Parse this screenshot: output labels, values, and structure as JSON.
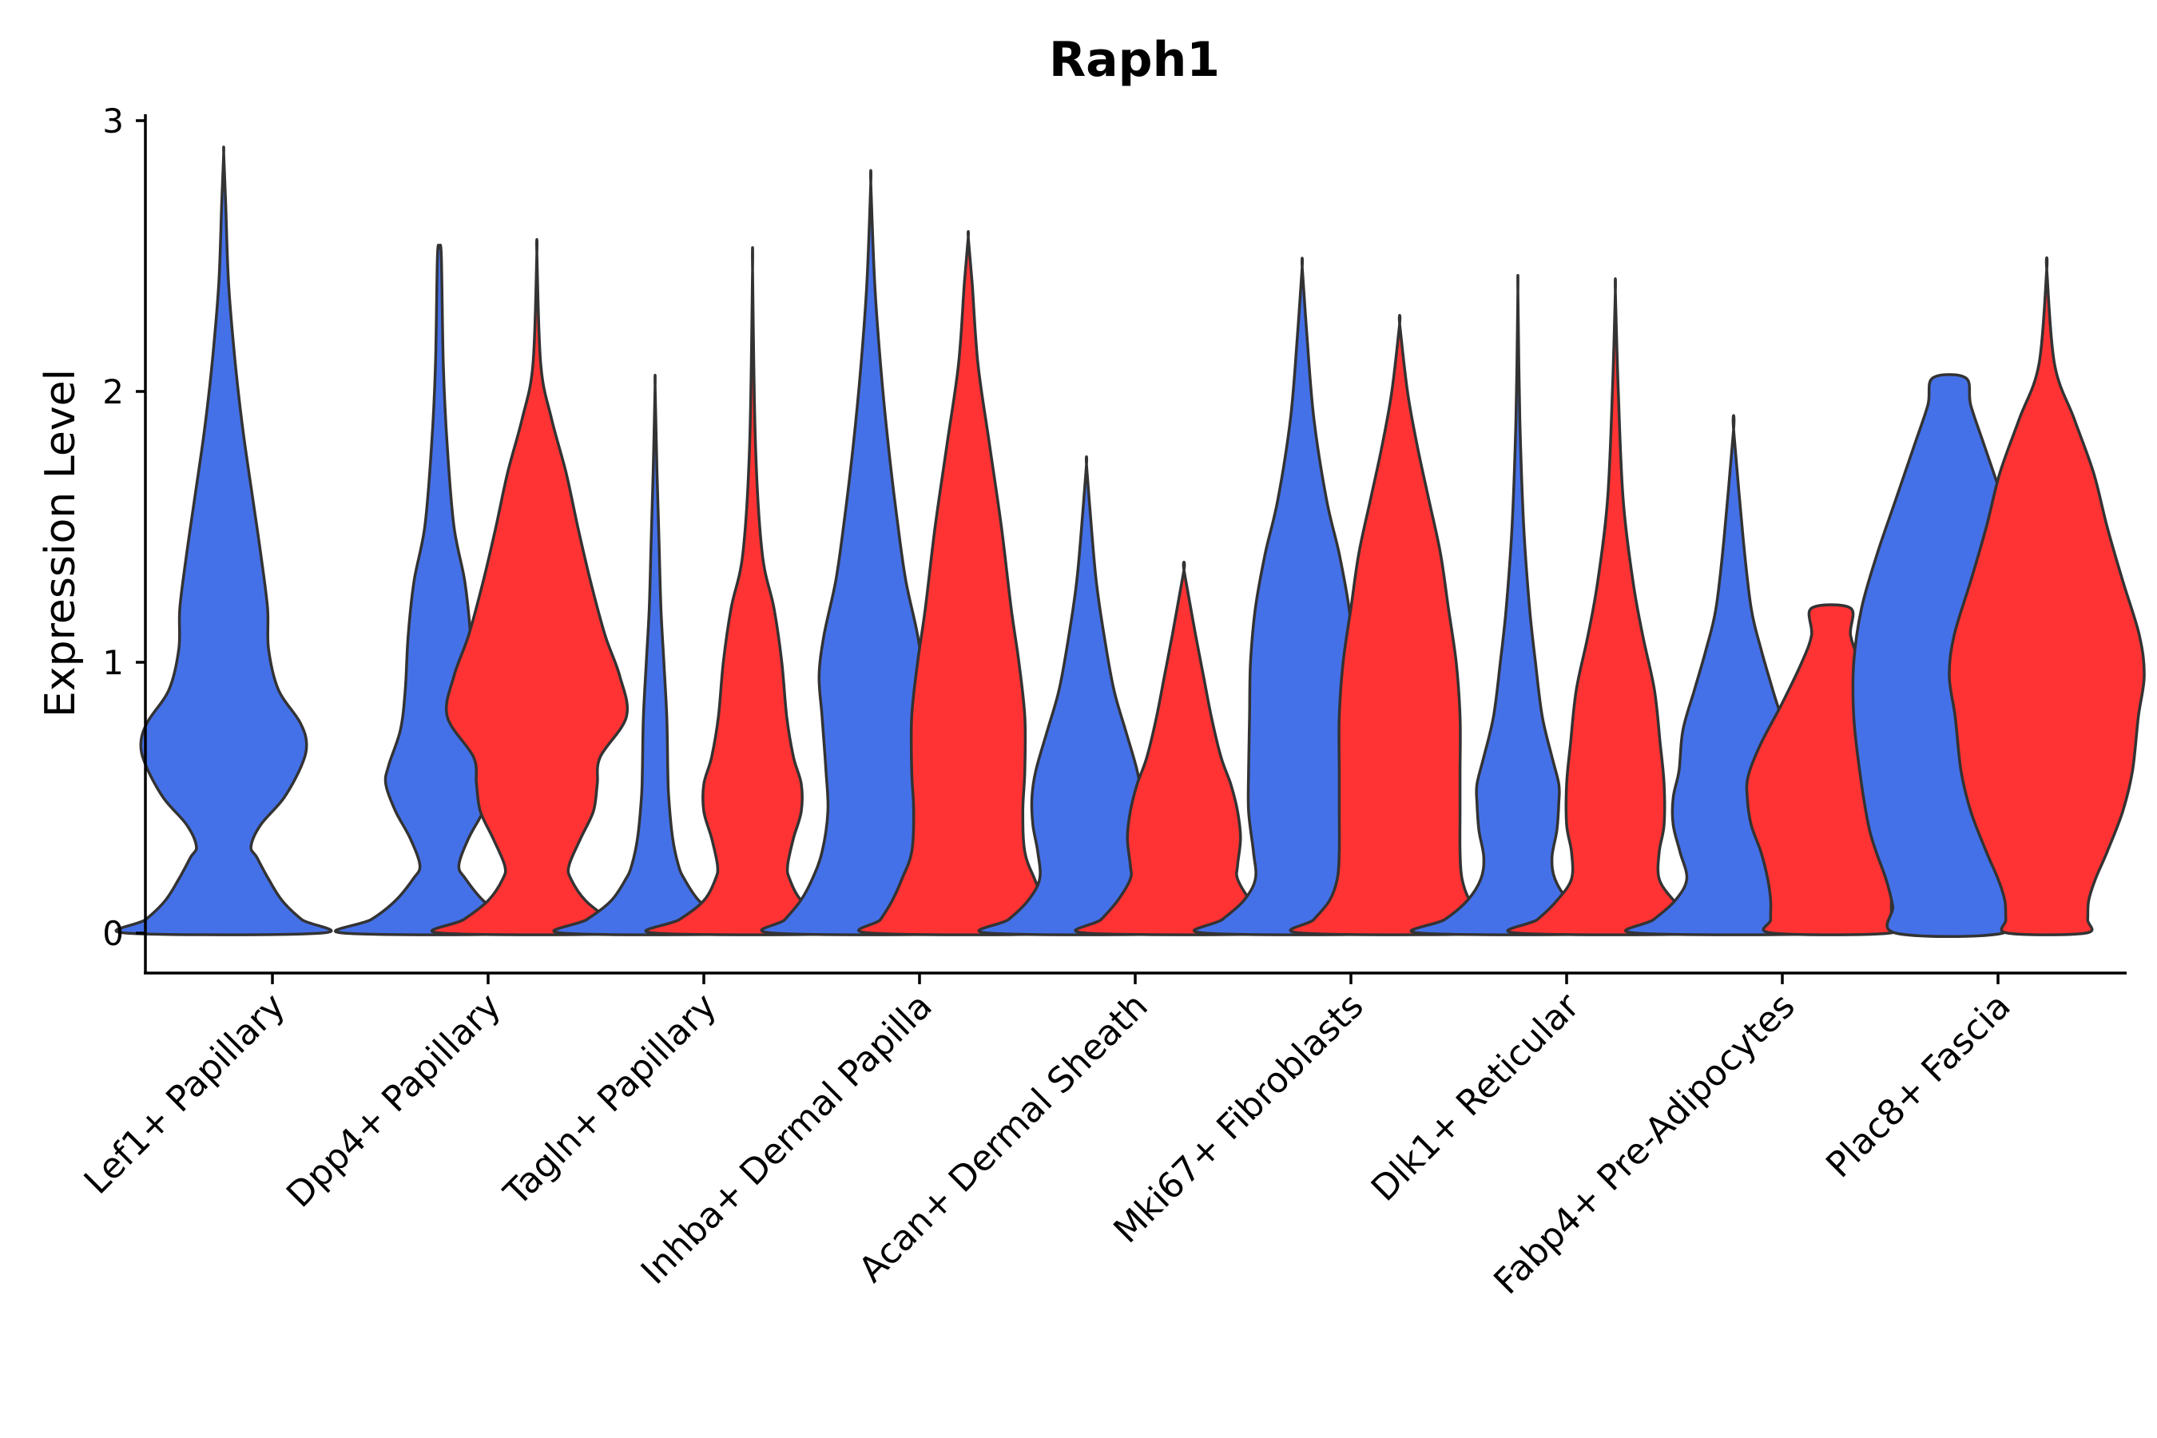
{
  "chart_data": {
    "type": "violin",
    "title": "Raph1",
    "xlabel": "",
    "ylabel": "Expression Level",
    "ylim": [
      -0.15,
      3
    ],
    "yticks": [
      0,
      1,
      2,
      3
    ],
    "grid": false,
    "legend": "none",
    "split_colors": [
      "#4571E8",
      "#FF3333"
    ],
    "categories": [
      "Lef1+ Papillary",
      "Dpp4+ Papillary",
      "Tagln+ Papillary",
      "Inhba+ Dermal Papilla",
      "Acan+ Dermal Sheath",
      "Mki67+ Fibroblasts",
      "Dlk1+ Reticular",
      "Fabp4+ Pre-Adipocytes",
      "Plac8+ Fascia"
    ],
    "violins": [
      {
        "category": "Lef1+ Papillary",
        "group": 1,
        "color": "#4571E8",
        "max": 2.88,
        "profile": [
          [
            0,
            1.0
          ],
          [
            0.05,
            0.8
          ],
          [
            0.12,
            0.6
          ],
          [
            0.2,
            0.46
          ],
          [
            0.28,
            0.34
          ],
          [
            0.32,
            0.28
          ],
          [
            0.4,
            0.38
          ],
          [
            0.5,
            0.62
          ],
          [
            0.62,
            0.8
          ],
          [
            0.7,
            0.85
          ],
          [
            0.78,
            0.78
          ],
          [
            0.9,
            0.56
          ],
          [
            1.05,
            0.46
          ],
          [
            1.2,
            0.45
          ],
          [
            1.4,
            0.38
          ],
          [
            1.6,
            0.3
          ],
          [
            1.85,
            0.2
          ],
          [
            2.1,
            0.12
          ],
          [
            2.4,
            0.05
          ],
          [
            2.7,
            0.02
          ],
          [
            2.88,
            0
          ]
        ]
      },
      {
        "category": "Dpp4+ Papillary",
        "group": 1,
        "color": "#4571E8",
        "max": 2.53,
        "profile": [
          [
            0,
            0.98
          ],
          [
            0.05,
            0.7
          ],
          [
            0.12,
            0.45
          ],
          [
            0.2,
            0.27
          ],
          [
            0.25,
            0.2
          ],
          [
            0.35,
            0.3
          ],
          [
            0.45,
            0.45
          ],
          [
            0.55,
            0.55
          ],
          [
            0.62,
            0.52
          ],
          [
            0.75,
            0.4
          ],
          [
            0.9,
            0.35
          ],
          [
            1.1,
            0.32
          ],
          [
            1.3,
            0.26
          ],
          [
            1.5,
            0.15
          ],
          [
            1.8,
            0.08
          ],
          [
            2.1,
            0.04
          ],
          [
            2.5,
            0.02
          ],
          [
            2.53,
            0
          ]
        ]
      },
      {
        "category": "Dpp4+ Papillary",
        "group": 2,
        "color": "#FF3333",
        "max": 2.51,
        "profile": [
          [
            0,
            0.98
          ],
          [
            0.05,
            0.75
          ],
          [
            0.12,
            0.5
          ],
          [
            0.2,
            0.35
          ],
          [
            0.25,
            0.33
          ],
          [
            0.35,
            0.45
          ],
          [
            0.45,
            0.58
          ],
          [
            0.55,
            0.62
          ],
          [
            0.65,
            0.65
          ],
          [
            0.8,
            0.92
          ],
          [
            0.95,
            0.85
          ],
          [
            1.1,
            0.7
          ],
          [
            1.3,
            0.55
          ],
          [
            1.5,
            0.42
          ],
          [
            1.7,
            0.3
          ],
          [
            1.9,
            0.15
          ],
          [
            2.1,
            0.04
          ],
          [
            2.51,
            0
          ]
        ]
      },
      {
        "category": "Tagln+ Papillary",
        "group": 1,
        "color": "#4571E8",
        "max": 2.02,
        "profile": [
          [
            0,
            0.95
          ],
          [
            0.05,
            0.7
          ],
          [
            0.12,
            0.45
          ],
          [
            0.2,
            0.3
          ],
          [
            0.25,
            0.24
          ],
          [
            0.35,
            0.18
          ],
          [
            0.5,
            0.14
          ],
          [
            0.6,
            0.13
          ],
          [
            0.8,
            0.12
          ],
          [
            1.0,
            0.09
          ],
          [
            1.2,
            0.06
          ],
          [
            1.45,
            0.04
          ],
          [
            1.7,
            0.02
          ],
          [
            2.02,
            0
          ]
        ]
      },
      {
        "category": "Tagln+ Papillary",
        "group": 2,
        "color": "#FF3333",
        "max": 2.45,
        "profile": [
          [
            0,
            1.0
          ],
          [
            0.05,
            0.75
          ],
          [
            0.12,
            0.5
          ],
          [
            0.2,
            0.38
          ],
          [
            0.25,
            0.36
          ],
          [
            0.35,
            0.42
          ],
          [
            0.45,
            0.5
          ],
          [
            0.55,
            0.5
          ],
          [
            0.65,
            0.42
          ],
          [
            0.8,
            0.35
          ],
          [
            1.0,
            0.3
          ],
          [
            1.2,
            0.22
          ],
          [
            1.4,
            0.1
          ],
          [
            1.8,
            0.03
          ],
          [
            2.45,
            0
          ]
        ]
      },
      {
        "category": "Inhba+ Dermal Papilla",
        "group": 1,
        "color": "#4571E8",
        "max": 2.77,
        "profile": [
          [
            0,
            1.0
          ],
          [
            0.05,
            0.88
          ],
          [
            0.12,
            0.72
          ],
          [
            0.2,
            0.6
          ],
          [
            0.3,
            0.5
          ],
          [
            0.45,
            0.44
          ],
          [
            0.6,
            0.46
          ],
          [
            0.8,
            0.5
          ],
          [
            0.95,
            0.53
          ],
          [
            1.1,
            0.48
          ],
          [
            1.3,
            0.36
          ],
          [
            1.5,
            0.28
          ],
          [
            1.8,
            0.18
          ],
          [
            2.1,
            0.1
          ],
          [
            2.4,
            0.04
          ],
          [
            2.77,
            0
          ]
        ]
      },
      {
        "category": "Inhba+ Dermal Papilla",
        "group": 2,
        "color": "#FF3333",
        "max": 2.57,
        "profile": [
          [
            0,
            1.0
          ],
          [
            0.05,
            0.9
          ],
          [
            0.12,
            0.78
          ],
          [
            0.2,
            0.68
          ],
          [
            0.3,
            0.58
          ],
          [
            0.45,
            0.56
          ],
          [
            0.6,
            0.58
          ],
          [
            0.8,
            0.58
          ],
          [
            1.0,
            0.52
          ],
          [
            1.2,
            0.44
          ],
          [
            1.5,
            0.34
          ],
          [
            1.8,
            0.22
          ],
          [
            2.1,
            0.1
          ],
          [
            2.4,
            0.04
          ],
          [
            2.57,
            0
          ]
        ]
      },
      {
        "category": "Acan+ Dermal Sheath",
        "group": 1,
        "color": "#4571E8",
        "max": 1.73,
        "profile": [
          [
            0,
            1.0
          ],
          [
            0.05,
            0.8
          ],
          [
            0.12,
            0.6
          ],
          [
            0.2,
            0.48
          ],
          [
            0.3,
            0.5
          ],
          [
            0.4,
            0.55
          ],
          [
            0.5,
            0.56
          ],
          [
            0.6,
            0.52
          ],
          [
            0.75,
            0.4
          ],
          [
            0.9,
            0.28
          ],
          [
            1.1,
            0.18
          ],
          [
            1.3,
            0.1
          ],
          [
            1.5,
            0.05
          ],
          [
            1.73,
            0
          ]
        ]
      },
      {
        "category": "Acan+ Dermal Sheath",
        "group": 2,
        "color": "#FF3333",
        "max": 1.34,
        "profile": [
          [
            0,
            1.0
          ],
          [
            0.05,
            0.85
          ],
          [
            0.12,
            0.68
          ],
          [
            0.2,
            0.55
          ],
          [
            0.25,
            0.55
          ],
          [
            0.35,
            0.58
          ],
          [
            0.45,
            0.55
          ],
          [
            0.55,
            0.48
          ],
          [
            0.65,
            0.38
          ],
          [
            0.8,
            0.28
          ],
          [
            0.95,
            0.2
          ],
          [
            1.1,
            0.12
          ],
          [
            1.34,
            0
          ]
        ]
      },
      {
        "category": "Mki67+ Fibroblasts",
        "group": 1,
        "color": "#4571E8",
        "max": 2.46,
        "profile": [
          [
            0,
            1.0
          ],
          [
            0.05,
            0.82
          ],
          [
            0.12,
            0.6
          ],
          [
            0.2,
            0.48
          ],
          [
            0.3,
            0.5
          ],
          [
            0.45,
            0.55
          ],
          [
            0.6,
            0.55
          ],
          [
            0.8,
            0.54
          ],
          [
            1.0,
            0.53
          ],
          [
            1.2,
            0.48
          ],
          [
            1.4,
            0.38
          ],
          [
            1.6,
            0.25
          ],
          [
            1.9,
            0.12
          ],
          [
            2.2,
            0.05
          ],
          [
            2.46,
            0
          ]
        ]
      },
      {
        "category": "Mki67+ Fibroblasts",
        "group": 2,
        "color": "#FF3333",
        "max": 2.25,
        "profile": [
          [
            0,
            1.0
          ],
          [
            0.05,
            0.88
          ],
          [
            0.12,
            0.72
          ],
          [
            0.2,
            0.64
          ],
          [
            0.3,
            0.62
          ],
          [
            0.45,
            0.62
          ],
          [
            0.6,
            0.62
          ],
          [
            0.8,
            0.62
          ],
          [
            1.0,
            0.58
          ],
          [
            1.2,
            0.5
          ],
          [
            1.4,
            0.42
          ],
          [
            1.6,
            0.3
          ],
          [
            1.8,
            0.18
          ],
          [
            2.0,
            0.08
          ],
          [
            2.25,
            0
          ]
        ]
      },
      {
        "category": "Dlk1+ Reticular",
        "group": 1,
        "color": "#4571E8",
        "max": 2.37,
        "profile": [
          [
            0,
            1.0
          ],
          [
            0.05,
            0.75
          ],
          [
            0.12,
            0.52
          ],
          [
            0.2,
            0.38
          ],
          [
            0.28,
            0.35
          ],
          [
            0.38,
            0.4
          ],
          [
            0.48,
            0.42
          ],
          [
            0.55,
            0.42
          ],
          [
            0.65,
            0.35
          ],
          [
            0.8,
            0.25
          ],
          [
            1.0,
            0.18
          ],
          [
            1.2,
            0.12
          ],
          [
            1.5,
            0.06
          ],
          [
            1.9,
            0.02
          ],
          [
            2.37,
            0
          ]
        ]
      },
      {
        "category": "Dlk1+ Reticular",
        "group": 2,
        "color": "#FF3333",
        "max": 2.37,
        "profile": [
          [
            0,
            1.0
          ],
          [
            0.05,
            0.8
          ],
          [
            0.12,
            0.6
          ],
          [
            0.2,
            0.45
          ],
          [
            0.3,
            0.45
          ],
          [
            0.4,
            0.5
          ],
          [
            0.55,
            0.5
          ],
          [
            0.7,
            0.46
          ],
          [
            0.9,
            0.4
          ],
          [
            1.1,
            0.28
          ],
          [
            1.3,
            0.18
          ],
          [
            1.6,
            0.08
          ],
          [
            2.0,
            0.03
          ],
          [
            2.37,
            0
          ]
        ]
      },
      {
        "category": "Fabp4+ Pre-Adipocytes",
        "group": 1,
        "color": "#4571E8",
        "max": 1.86,
        "profile": [
          [
            0,
            1.0
          ],
          [
            0.05,
            0.82
          ],
          [
            0.12,
            0.6
          ],
          [
            0.2,
            0.48
          ],
          [
            0.3,
            0.55
          ],
          [
            0.4,
            0.62
          ],
          [
            0.5,
            0.62
          ],
          [
            0.6,
            0.56
          ],
          [
            0.75,
            0.52
          ],
          [
            0.9,
            0.4
          ],
          [
            1.05,
            0.28
          ],
          [
            1.2,
            0.18
          ],
          [
            1.45,
            0.1
          ],
          [
            1.86,
            0
          ]
        ]
      },
      {
        "category": "Fabp4+ Pre-Adipocytes",
        "group": 2,
        "color": "#FF3333",
        "max": 1.2,
        "profile": [
          [
            0,
            0.6
          ],
          [
            0.05,
            0.62
          ],
          [
            0.12,
            0.62
          ],
          [
            0.2,
            0.65
          ],
          [
            0.3,
            0.72
          ],
          [
            0.4,
            0.82
          ],
          [
            0.5,
            0.86
          ],
          [
            0.58,
            0.85
          ],
          [
            0.7,
            0.72
          ],
          [
            0.85,
            0.5
          ],
          [
            1.0,
            0.3
          ],
          [
            1.1,
            0.2
          ],
          [
            1.2,
            0.2
          ]
        ]
      },
      {
        "category": "Plac8+ Fascia",
        "group": 1,
        "color": "#4571E8",
        "max": 2.05,
        "profile": [
          [
            0,
            0.55
          ],
          [
            0.1,
            0.58
          ],
          [
            0.2,
            0.65
          ],
          [
            0.3,
            0.75
          ],
          [
            0.4,
            0.83
          ],
          [
            0.6,
            0.92
          ],
          [
            0.8,
            0.98
          ],
          [
            1.0,
            0.98
          ],
          [
            1.2,
            0.9
          ],
          [
            1.4,
            0.74
          ],
          [
            1.6,
            0.55
          ],
          [
            1.8,
            0.36
          ],
          [
            1.95,
            0.22
          ],
          [
            2.05,
            0.17
          ]
        ]
      },
      {
        "category": "Plac8+ Fascia",
        "group": 2,
        "color": "#FF3333",
        "max": 2.45,
        "profile": [
          [
            0,
            0.4
          ],
          [
            0.05,
            0.42
          ],
          [
            0.12,
            0.43
          ],
          [
            0.2,
            0.5
          ],
          [
            0.3,
            0.62
          ],
          [
            0.45,
            0.78
          ],
          [
            0.6,
            0.88
          ],
          [
            0.8,
            0.94
          ],
          [
            0.95,
            1.0
          ],
          [
            1.1,
            0.95
          ],
          [
            1.3,
            0.78
          ],
          [
            1.5,
            0.62
          ],
          [
            1.7,
            0.48
          ],
          [
            1.9,
            0.28
          ],
          [
            2.1,
            0.08
          ],
          [
            2.45,
            0
          ]
        ]
      }
    ]
  }
}
